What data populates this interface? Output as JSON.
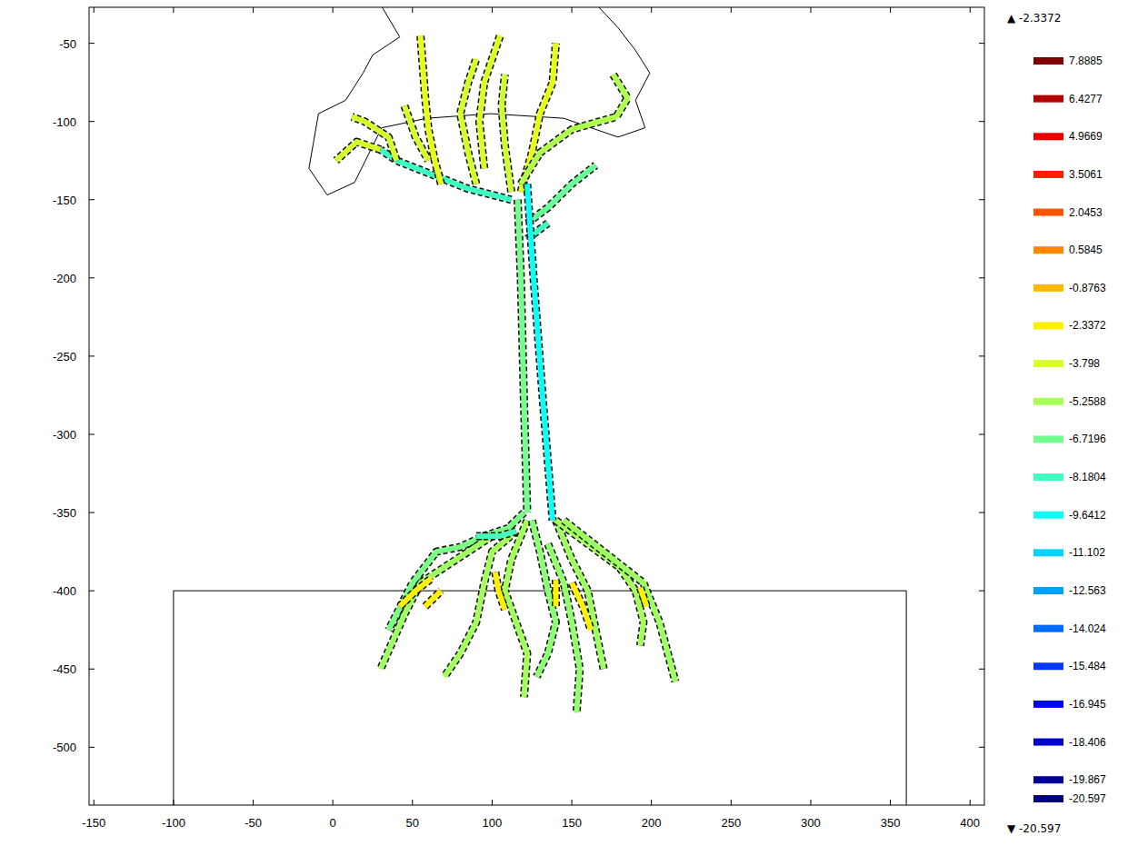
{
  "chart_data": {
    "type": "line",
    "xlim": [
      -153,
      409
    ],
    "ylim": [
      -537,
      -27
    ],
    "xticks": [
      -150,
      -100,
      -50,
      0,
      50,
      100,
      150,
      200,
      250,
      300,
      350,
      400
    ],
    "yticks": [
      -50,
      -100,
      -150,
      -200,
      -250,
      -300,
      -350,
      -400,
      -450,
      -500
    ],
    "series": [
      {
        "x": [
          112,
          85,
          60,
          40,
          30
        ],
        "values": [
          -150,
          -143,
          -133,
          -125,
          -118
        ],
        "level": -8.2
      },
      {
        "x": [
          30,
          15,
          2
        ],
        "values": [
          -118,
          -113,
          -125
        ],
        "level": -4
      },
      {
        "x": [
          40,
          35,
          20,
          12
        ],
        "values": [
          -125,
          -110,
          -100,
          -97
        ],
        "level": -4
      },
      {
        "x": [
          68,
          64,
          60,
          58,
          55
        ],
        "values": [
          -140,
          -125,
          -105,
          -85,
          -45
        ],
        "level": -3.5
      },
      {
        "x": [
          45,
          52,
          60
        ],
        "values": [
          -90,
          -110,
          -125
        ],
        "level": -4
      },
      {
        "x": [
          90,
          85,
          80,
          85,
          90
        ],
        "values": [
          -140,
          -120,
          -95,
          -75,
          -60
        ],
        "level": -4
      },
      {
        "x": [
          95,
          92,
          95,
          105
        ],
        "values": [
          -130,
          -100,
          -75,
          -45
        ],
        "level": -3.8
      },
      {
        "x": [
          112,
          108,
          106,
          108
        ],
        "values": [
          -145,
          -115,
          -90,
          -70
        ],
        "level": -4.2
      },
      {
        "x": [
          118,
          125,
          130,
          138,
          140
        ],
        "values": [
          -145,
          -120,
          -95,
          -75,
          -50
        ],
        "level": -3.5
      },
      {
        "x": [
          118,
          130,
          150,
          178,
          185,
          176
        ],
        "values": [
          -140,
          -120,
          -105,
          -97,
          -85,
          -70
        ],
        "level": -5
      },
      {
        "x": [
          122,
          135,
          150,
          165
        ],
        "values": [
          -165,
          -155,
          -140,
          -128
        ],
        "level": -7
      },
      {
        "x": [
          122,
          135
        ],
        "values": [
          -175,
          -165
        ],
        "level": -8.2
      },
      {
        "x": [
          116,
          118,
          120,
          122
        ],
        "values": [
          -150,
          -200,
          -280,
          -350
        ],
        "level": -6.7
      },
      {
        "x": [
          122,
          126,
          132,
          138
        ],
        "values": [
          -140,
          -200,
          -280,
          -355
        ],
        "level": -9.6
      },
      {
        "x": [
          120,
          110,
          95,
          80,
          65,
          50,
          35
        ],
        "values": [
          -350,
          -360,
          -365,
          -372,
          -375,
          -395,
          -425
        ],
        "level": -6.5
      },
      {
        "x": [
          100,
          85,
          70,
          55,
          45,
          30
        ],
        "values": [
          -365,
          -375,
          -385,
          -395,
          -415,
          -450
        ],
        "level": -5.5
      },
      {
        "x": [
          115,
          100,
          95,
          90,
          80,
          70
        ],
        "values": [
          -362,
          -375,
          -395,
          -420,
          -440,
          -455
        ],
        "level": -5.3
      },
      {
        "x": [
          122,
          112,
          108,
          115,
          122,
          120
        ],
        "values": [
          -355,
          -380,
          -400,
          -420,
          -440,
          -468
        ],
        "level": -5.3
      },
      {
        "x": [
          125,
          130,
          135,
          140,
          135,
          128
        ],
        "values": [
          -355,
          -375,
          -400,
          -420,
          -440,
          -455
        ],
        "level": -6
      },
      {
        "x": [
          140,
          150,
          160,
          165,
          170
        ],
        "values": [
          -355,
          -380,
          -400,
          -425,
          -450
        ],
        "level": -5.5
      },
      {
        "x": [
          140,
          160,
          180,
          190,
          195,
          193
        ],
        "values": [
          -355,
          -370,
          -385,
          -400,
          -420,
          -435
        ],
        "level": -5.3
      },
      {
        "x": [
          145,
          170,
          195,
          205,
          215
        ],
        "values": [
          -355,
          -375,
          -395,
          -420,
          -458
        ],
        "level": -5.5
      },
      {
        "x": [
          135,
          145,
          150,
          155,
          153
        ],
        "values": [
          -370,
          -395,
          -420,
          -450,
          -478
        ],
        "level": -5.8
      },
      {
        "x": [
          90,
          105,
          115
        ],
        "values": [
          -365,
          -365,
          -362
        ],
        "level": -8
      },
      {
        "x": [
          42,
          52,
          62
        ],
        "values": [
          -410,
          -400,
          -392
        ],
        "level": -2.4
      },
      {
        "x": [
          58,
          68
        ],
        "values": [
          -410,
          -400
        ],
        "level": -2.4
      },
      {
        "x": [
          102,
          104,
          108
        ],
        "values": [
          -388,
          -400,
          -412
        ],
        "level": -2.4
      },
      {
        "x": [
          140,
          140
        ],
        "values": [
          -393,
          -410
        ],
        "level": -2.4
      },
      {
        "x": [
          150,
          157,
          162
        ],
        "values": [
          -395,
          -410,
          -425
        ],
        "level": -2.4
      },
      {
        "x": [
          193,
          197
        ],
        "values": [
          -398,
          -410
        ],
        "level": -2.4
      }
    ],
    "outlines": [
      {
        "x": [
          31,
          42,
          25,
          19,
          8,
          -9,
          -12,
          -15,
          -3.5,
          13.6,
          30.7,
          59,
          99,
          145,
          179,
          196,
          190,
          199,
          190,
          179,
          167
        ],
        "y": [
          -27,
          -46,
          -57.5,
          -69,
          -86.5,
          -95,
          -112.6,
          -130,
          -147,
          -139,
          -104,
          -98,
          -95,
          -98,
          -110,
          -104,
          -86.5,
          -69,
          -54.6,
          -40,
          -27
        ]
      },
      {
        "x": [
          -100,
          -100,
          360,
          360
        ],
        "y": [
          -600,
          -400,
          -400,
          -600
        ]
      }
    ],
    "colorbar": {
      "range": [
        -20.597,
        7.8885
      ],
      "ticks": [
        7.8885,
        6.4277,
        4.9669,
        3.5061,
        2.0453,
        0.5845,
        -0.8763,
        -2.3372,
        -3.798,
        -5.2588,
        -6.7196,
        -8.1804,
        -9.6412,
        -11.102,
        -12.563,
        -14.024,
        -15.484,
        -16.945,
        -18.406,
        -19.867,
        -20.597
      ],
      "max": {
        "value": -2.3372,
        "label": "▲ -2.3372"
      },
      "min": {
        "value": -20.597,
        "label": "▼ -20.597"
      }
    }
  }
}
